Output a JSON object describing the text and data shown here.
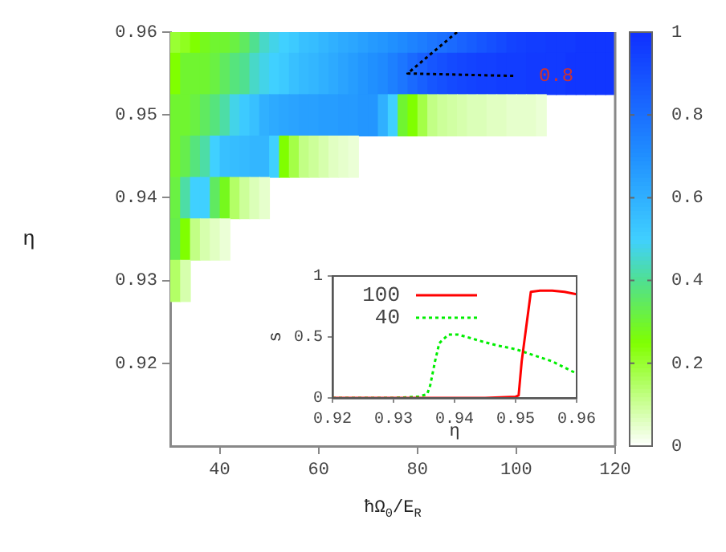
{
  "chart_data": [
    {
      "type": "heatmap",
      "xlabel": "ħΩ$_{0}$/E$_{R}$",
      "ylabel": "η",
      "x": [
        31,
        33,
        35,
        37,
        39,
        41,
        43,
        45,
        47,
        49,
        51,
        53,
        55,
        57,
        59,
        61,
        63,
        65,
        67,
        69,
        71,
        73,
        75,
        77,
        79,
        81,
        83,
        85,
        87,
        89,
        91,
        93,
        95,
        97,
        99,
        101,
        103,
        105,
        107,
        109,
        111,
        113,
        115,
        117,
        119
      ],
      "y": [
        0.95875,
        0.955,
        0.95,
        0.945,
        0.94,
        0.935,
        0.93
      ],
      "cells": [
        [
          0.2,
          0.22,
          0.25,
          0.28,
          0.3,
          0.3,
          0.32,
          0.35,
          0.4,
          0.45,
          0.48,
          0.5,
          0.52,
          0.55,
          0.56,
          0.58,
          0.6,
          0.62,
          0.63,
          0.65,
          0.67,
          0.68,
          0.7,
          0.72,
          0.74,
          0.76,
          0.78,
          0.8,
          0.82,
          0.84,
          0.86,
          0.88,
          0.9,
          0.92,
          0.94,
          0.95,
          0.96,
          0.96,
          0.97,
          0.97,
          0.97,
          0.98,
          0.98,
          0.98,
          0.98
        ],
        [
          0.25,
          0.3,
          0.3,
          0.3,
          0.32,
          0.35,
          0.38,
          0.4,
          0.45,
          0.48,
          0.5,
          0.52,
          0.55,
          0.57,
          0.58,
          0.6,
          0.62,
          0.64,
          0.66,
          0.68,
          0.7,
          0.72,
          0.75,
          0.78,
          0.82,
          0.85,
          0.88,
          0.9,
          0.92,
          0.93,
          0.94,
          0.95,
          0.95,
          0.96,
          0.96,
          0.96,
          0.97,
          0.97,
          0.97,
          0.97,
          0.98,
          0.98,
          0.98,
          0.98,
          0.98
        ],
        [
          0.3,
          0.3,
          0.32,
          0.35,
          0.38,
          0.42,
          0.48,
          0.52,
          0.55,
          0.6,
          0.62,
          0.63,
          0.64,
          0.65,
          0.65,
          0.66,
          0.66,
          0.67,
          0.67,
          0.68,
          0.68,
          0.6,
          0.5,
          0.3,
          0.25,
          0.18,
          0.12,
          0.1,
          0.09,
          0.08,
          0.07,
          0.07,
          0.06,
          0.06,
          0.05,
          0.05,
          0.05,
          0.04,
          null,
          null,
          null,
          null,
          null,
          null,
          null
        ],
        [
          0.3,
          0.33,
          0.38,
          0.42,
          0.5,
          0.55,
          0.56,
          0.57,
          0.58,
          0.58,
          0.5,
          0.25,
          0.18,
          0.12,
          0.1,
          0.08,
          0.06,
          0.05,
          0.04,
          null,
          null,
          null,
          null,
          null,
          null,
          null,
          null,
          null,
          null,
          null,
          null,
          null,
          null,
          null,
          null,
          null,
          null,
          null,
          null,
          null,
          null,
          null,
          null,
          null,
          null
        ],
        [
          0.32,
          0.42,
          0.5,
          0.5,
          0.35,
          0.28,
          0.15,
          0.1,
          0.07,
          0.05,
          null,
          null,
          null,
          null,
          null,
          null,
          null,
          null,
          null,
          null,
          null,
          null,
          null,
          null,
          null,
          null,
          null,
          null,
          null,
          null,
          null,
          null,
          null,
          null,
          null,
          null,
          null,
          null,
          null,
          null,
          null,
          null,
          null,
          null,
          null
        ],
        [
          0.33,
          0.25,
          0.12,
          0.08,
          0.06,
          0.04,
          null,
          null,
          null,
          null,
          null,
          null,
          null,
          null,
          null,
          null,
          null,
          null,
          null,
          null,
          null,
          null,
          null,
          null,
          null,
          null,
          null,
          null,
          null,
          null,
          null,
          null,
          null,
          null,
          null,
          null,
          null,
          null,
          null,
          null,
          null,
          null,
          null,
          null,
          null
        ],
        [
          0.15,
          0.08,
          null,
          null,
          null,
          null,
          null,
          null,
          null,
          null,
          null,
          null,
          null,
          null,
          null,
          null,
          null,
          null,
          null,
          null,
          null,
          null,
          null,
          null,
          null,
          null,
          null,
          null,
          null,
          null,
          null,
          null,
          null,
          null,
          null,
          null,
          null,
          null,
          null,
          null,
          null,
          null,
          null,
          null,
          null
        ]
      ],
      "series": [
        {
          "type": "line",
          "x": [
            88,
            78,
            100
          ],
          "values": [
            0.96,
            0.955,
            0.9547
          ],
          "color": "#000000",
          "line_style": "dotted"
        }
      ],
      "annotations": [
        "0.8"
      ],
      "xlim": [
        30,
        120
      ],
      "xticks": [
        40,
        60,
        80,
        100,
        120
      ],
      "ylim": [
        0.91,
        0.96
      ],
      "yticks": [
        0.92,
        0.93,
        0.94,
        0.95,
        0.96
      ],
      "clim": [
        0,
        1
      ],
      "cticks": [
        0,
        0.2,
        0.4,
        0.6,
        0.8,
        1
      ]
    },
    {
      "type": "line",
      "xlabel": "η",
      "ylabel": "s",
      "legend": "top left",
      "xlim": [
        0.92,
        0.96
      ],
      "xticks": [
        0.92,
        0.93,
        0.94,
        0.95,
        0.96
      ],
      "ylim": [
        0,
        1
      ],
      "yticks": [
        0,
        0.5,
        1
      ],
      "series": [
        {
          "name": "100",
          "color": "#ff0000",
          "line_style": "solid",
          "x": [
            0.92,
            0.93,
            0.94,
            0.945,
            0.95,
            0.9505,
            0.951,
            0.9525,
            0.954,
            0.956,
            0.958,
            0.96
          ],
          "values": [
            0,
            0,
            0,
            0,
            0.01,
            0.02,
            0.3,
            0.87,
            0.88,
            0.88,
            0.87,
            0.85
          ]
        },
        {
          "name": "40",
          "color": "#00ee00",
          "line_style": "dotted",
          "x": [
            0.92,
            0.93,
            0.934,
            0.9355,
            0.936,
            0.9368,
            0.9375,
            0.939,
            0.9405,
            0.942,
            0.944,
            0.947,
            0.95,
            0.953,
            0.956,
            0.96
          ],
          "values": [
            0,
            0,
            0.01,
            0.03,
            0.1,
            0.3,
            0.45,
            0.52,
            0.52,
            0.5,
            0.47,
            0.43,
            0.4,
            0.35,
            0.3,
            0.2
          ]
        }
      ]
    }
  ]
}
